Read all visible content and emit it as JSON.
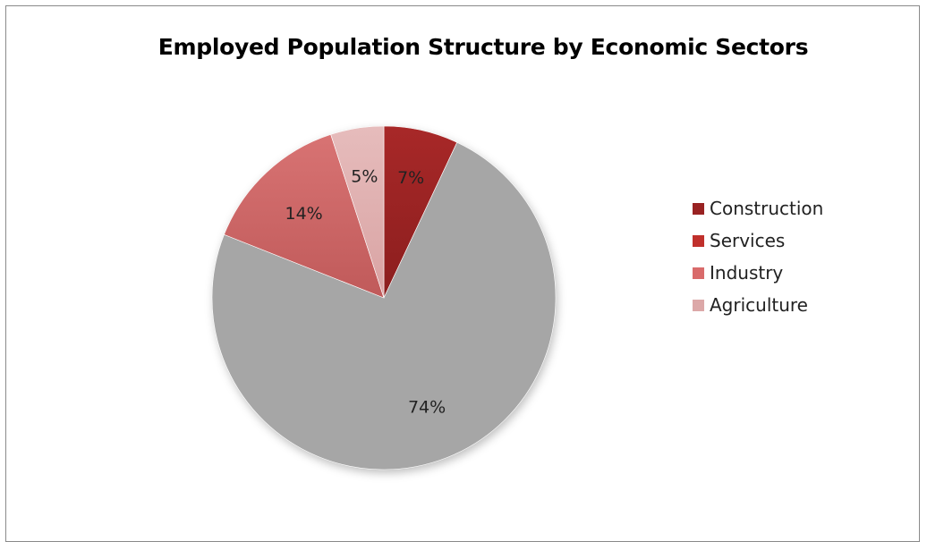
{
  "chart_data": {
    "type": "pie",
    "title": "Employed Population Structure by Economic Sectors",
    "legend_position": "right",
    "slices": [
      {
        "name": "Construction",
        "value": 7,
        "label": "7%",
        "color": "#8b1e1e",
        "color_light": "#a82828"
      },
      {
        "name": "Services",
        "value": 74,
        "label": "74%",
        "color": "#a6a6a6",
        "color_light": "#a6a6a6"
      },
      {
        "name": "Industry",
        "value": 14,
        "label": "14%",
        "color": "#c05a5a",
        "color_light": "#d87373"
      },
      {
        "name": "Agriculture",
        "value": 5,
        "label": "5%",
        "color": "#d9a3a3",
        "color_light": "#e6bcbc"
      }
    ],
    "legend": [
      {
        "name": "Construction",
        "color": "#992222"
      },
      {
        "name": "Services",
        "color": "#c0302c"
      },
      {
        "name": "Industry",
        "color": "#d96b6b"
      },
      {
        "name": "Agriculture",
        "color": "#dca8a8"
      }
    ]
  }
}
